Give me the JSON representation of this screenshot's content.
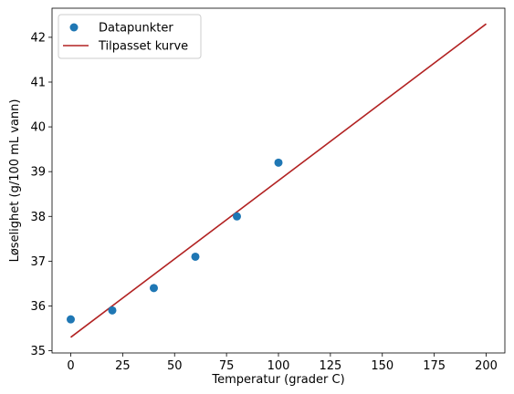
{
  "chart_data": {
    "type": "scatter",
    "title": "",
    "xlabel": "Temperatur (grader C)",
    "ylabel": "Løselighet (g/100 mL vann)",
    "xlim": [
      -9,
      209
    ],
    "ylim": [
      34.95,
      42.65
    ],
    "xticks": [
      0,
      25,
      50,
      75,
      100,
      125,
      150,
      175,
      200
    ],
    "yticks": [
      35,
      36,
      37,
      38,
      39,
      40,
      41,
      42
    ],
    "grid": false,
    "legend_position": "top-left",
    "series": [
      {
        "name": "Datapunkter",
        "kind": "scatter",
        "color": "#1f77b4",
        "x": [
          0,
          20,
          40,
          60,
          80,
          100
        ],
        "y": [
          35.7,
          35.9,
          36.4,
          37.1,
          38.0,
          39.2
        ]
      },
      {
        "name": "Tilpasset kurve",
        "kind": "line",
        "color": "#b22222",
        "x": [
          0,
          200
        ],
        "y": [
          35.3,
          42.3
        ]
      }
    ]
  }
}
